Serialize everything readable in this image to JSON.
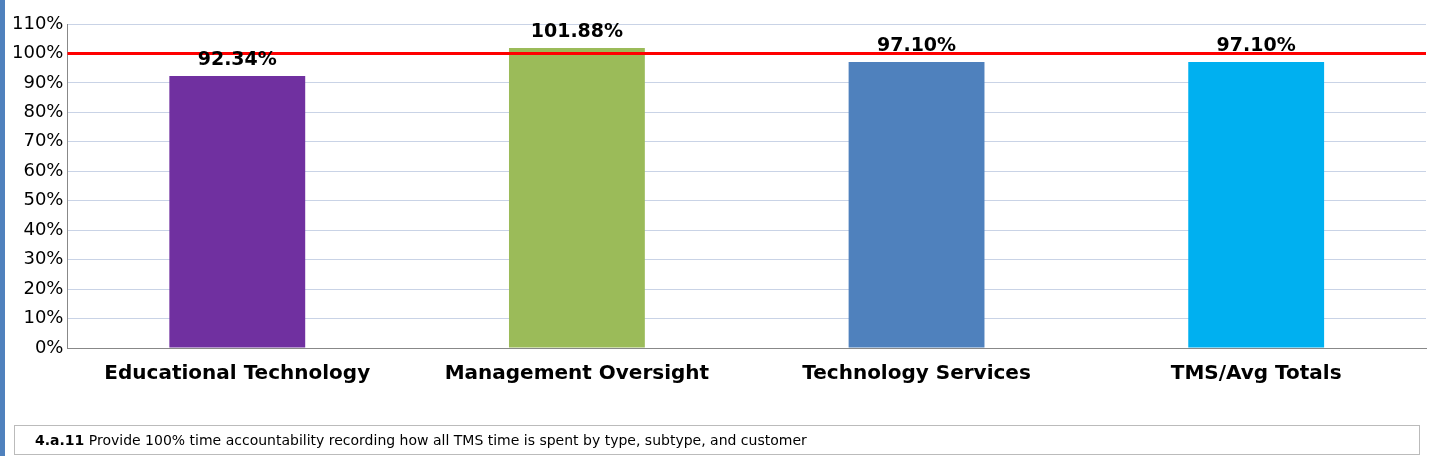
{
  "chart_data": {
    "type": "bar",
    "categories": [
      "Educational Technology",
      "Management Oversight",
      "Technology Services",
      "TMS/Avg Totals"
    ],
    "values": [
      92.34,
      101.88,
      97.1,
      97.1
    ],
    "colors": [
      "#7030a0",
      "#9bbb59",
      "#4f81bd",
      "#00b0f0"
    ],
    "value_labels": [
      "92.34%",
      "101.88%",
      "97.10%",
      "97.10%"
    ],
    "ylim": [
      0,
      110
    ],
    "yticks": [
      {
        "value": 0,
        "label": "0%"
      },
      {
        "value": 10,
        "label": "10%"
      },
      {
        "value": 20,
        "label": "20%"
      },
      {
        "value": 30,
        "label": "30%"
      },
      {
        "value": 40,
        "label": "40%"
      },
      {
        "value": 50,
        "label": "50%"
      },
      {
        "value": 60,
        "label": "60%"
      },
      {
        "value": 70,
        "label": "70%"
      },
      {
        "value": 80,
        "label": "80%"
      },
      {
        "value": 90,
        "label": "90%"
      },
      {
        "value": 100,
        "label": "100%"
      },
      {
        "value": 110,
        "label": "110%"
      }
    ],
    "grid": "y",
    "legend": false,
    "ref_lines": [
      {
        "axis": "y",
        "value": 100,
        "color": "#ff0000"
      }
    ],
    "annotations": [
      "4.a.11 Provide 100% time accountability recording how all TMS time is spent by type, subtype, and customer"
    ]
  }
}
